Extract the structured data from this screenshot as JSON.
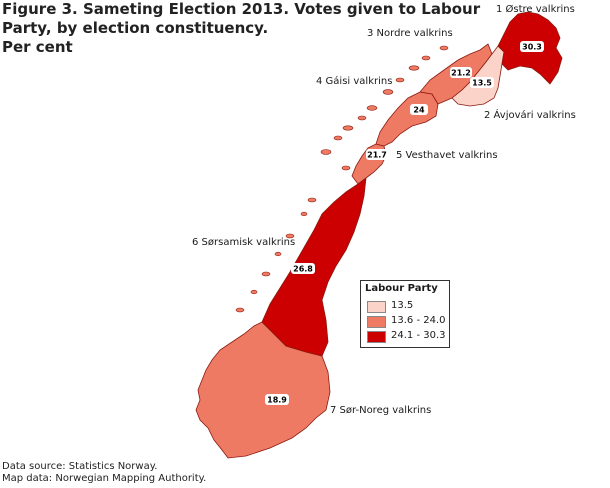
{
  "title": {
    "lines": [
      "Figure 3. Sameting Election 2013. Votes given to Labour",
      "Party, by election constituency.",
      "Per cent"
    ]
  },
  "legend": {
    "title": "Labour Party",
    "items": [
      {
        "label": "13.5",
        "color": "#fbd3c9"
      },
      {
        "label": "13.6 - 24.0",
        "color": "#ef7a63"
      },
      {
        "label": "24.1 - 30.3",
        "color": "#cc0000"
      }
    ]
  },
  "constituencies": [
    {
      "id": "ostre",
      "name": "1 Østre valkrins",
      "value": "30.3",
      "class": "24.1 - 30.3",
      "color": "#cc0000"
    },
    {
      "id": "avjovari",
      "name": "2 Ávjovári valkrins",
      "value": "13.5",
      "class": "13.5",
      "color": "#fbd3c9"
    },
    {
      "id": "nordre",
      "name": "3 Nordre valkrins",
      "value": "21.2",
      "class": "13.6 - 24.0",
      "color": "#ef7a63"
    },
    {
      "id": "gaisi",
      "name": "4 Gáisi valkrins",
      "value": "24",
      "class": "13.6 - 24.0",
      "color": "#ef7a63"
    },
    {
      "id": "vesthavet",
      "name": "5 Vesthavet valkrins",
      "value": "21.7",
      "class": "13.6 - 24.0",
      "color": "#ef7a63"
    },
    {
      "id": "sorsamisk",
      "name": "6 Sørsamisk valkrins",
      "value": "26.8",
      "class": "24.1 - 30.3",
      "color": "#cc0000"
    },
    {
      "id": "sornoreg",
      "name": "7 Sør-Noreg valkrins",
      "value": "18.9",
      "class": "13.6 - 24.0",
      "color": "#ef7a63"
    }
  ],
  "source": {
    "line1": "Data source: Statistics Norway.",
    "line2": "Map data: Norwegian Mapping Authority."
  }
}
